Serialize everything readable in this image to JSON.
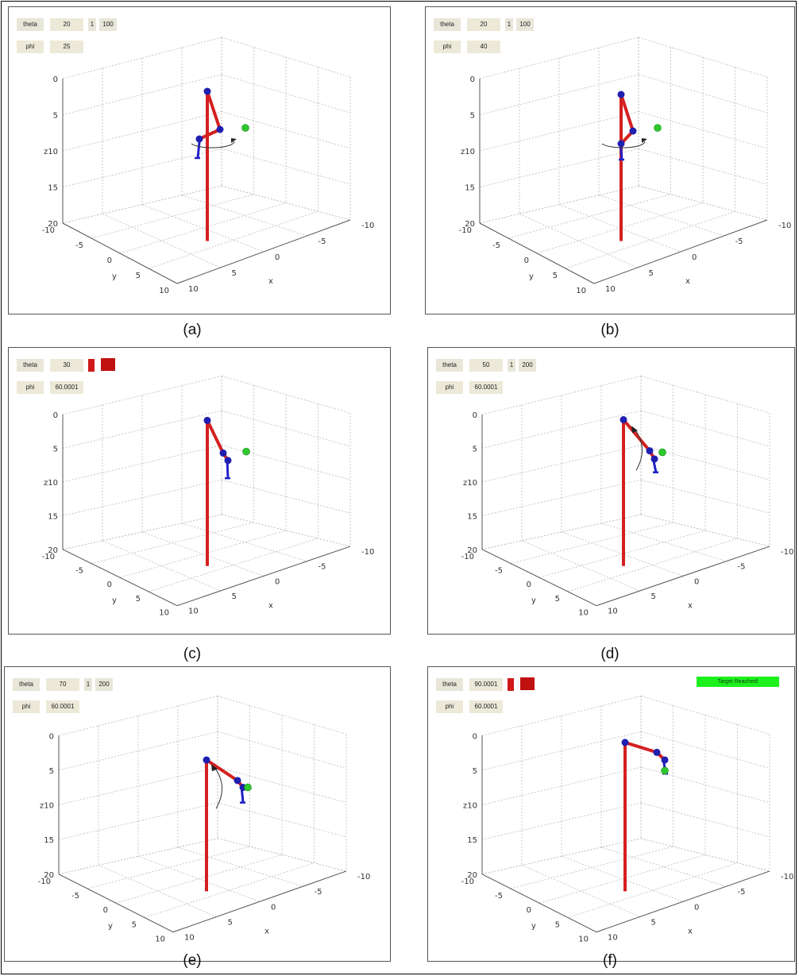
{
  "colors": {
    "arm": "#d42020",
    "joint": "#1f1fb0",
    "gripper": "#2020c8",
    "target": "#2ec82e",
    "banner": "#1ef01e",
    "control_bg": "#e8e6d8",
    "grid": "#bbbbbb"
  },
  "axes": {
    "z_label": "z",
    "x_label": "x",
    "y_label": "y",
    "z_ticks": [
      "0",
      "5",
      "10",
      "15",
      "20"
    ],
    "y_ticks": [
      "-10",
      "-5",
      "0",
      "5",
      "10"
    ],
    "x_ticks": [
      "10",
      "5",
      "0",
      "-5",
      "-10"
    ]
  },
  "panels": [
    {
      "caption": "(a)",
      "theta_label": "theta",
      "theta_value": "20",
      "step_value": "1",
      "max_value": "100",
      "phi_label": "phi",
      "phi_value": "25",
      "controls_highlighted": false,
      "banner": "",
      "rotation_icon": "yaw-rotation-arrow-icon"
    },
    {
      "caption": "(b)",
      "theta_label": "theta",
      "theta_value": "20",
      "step_value": "1",
      "max_value": "100",
      "phi_label": "phi",
      "phi_value": "40",
      "controls_highlighted": false,
      "banner": "",
      "rotation_icon": "yaw-rotation-arrow-icon"
    },
    {
      "caption": "(c)",
      "theta_label": "theta",
      "theta_value": "30",
      "step_value": "",
      "max_value": "",
      "phi_label": "phi",
      "phi_value": "60.0001",
      "controls_highlighted": true,
      "banner": "",
      "rotation_icon": ""
    },
    {
      "caption": "(d)",
      "theta_label": "theta",
      "theta_value": "50",
      "step_value": "1",
      "max_value": "200",
      "phi_label": "phi",
      "phi_value": "60.0001",
      "controls_highlighted": false,
      "banner": "",
      "rotation_icon": "pitch-rotation-arrow-icon"
    },
    {
      "caption": "(e)",
      "theta_label": "theta",
      "theta_value": "70",
      "step_value": "1",
      "max_value": "200",
      "phi_label": "phi",
      "phi_value": "60.0001",
      "controls_highlighted": false,
      "banner": "",
      "rotation_icon": "pitch-rotation-arrow-icon"
    },
    {
      "caption": "(f)",
      "theta_label": "theta",
      "theta_value": "90.0001",
      "step_value": "",
      "max_value": "",
      "phi_label": "phi",
      "phi_value": "60.0001",
      "controls_highlighted": true,
      "banner": "Target Reached!",
      "rotation_icon": ""
    }
  ]
}
